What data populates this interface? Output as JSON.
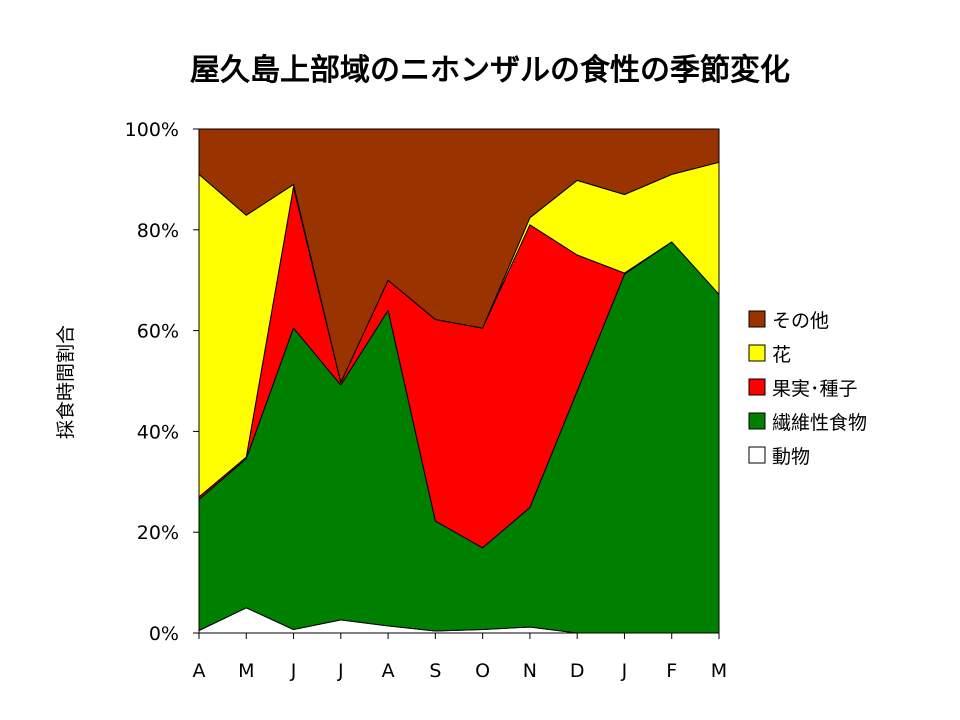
{
  "chart_data": {
    "type": "area",
    "stacked": true,
    "percent": true,
    "title": "屋久島上部域のニホンザルの食性の季節変化",
    "xlabel": "",
    "ylabel": "採食時間割合",
    "categories": [
      "A",
      "M",
      "J",
      "J",
      "A",
      "S",
      "O",
      "N",
      "D",
      "J",
      "F",
      "M"
    ],
    "ylim": [
      0,
      100
    ],
    "yticks": [
      "0%",
      "20%",
      "40%",
      "60%",
      "80%",
      "100%"
    ],
    "yticks_values": [
      0,
      20,
      40,
      60,
      80,
      100
    ],
    "grid": false,
    "legend_position": "right",
    "series": [
      {
        "name": "動物",
        "color": "#FFFFFF",
        "values": [
          0.5,
          5.0,
          0.7,
          2.6,
          1.4,
          0.4,
          0.7,
          1.2,
          0,
          0,
          0,
          0
        ]
      },
      {
        "name": "繊維性食物",
        "color": "#008000",
        "values": [
          26.0,
          29.6,
          59.8,
          46.6,
          62.6,
          21.8,
          16.2,
          23.7,
          48.0,
          71.2,
          77.6,
          67.2
        ]
      },
      {
        "name": "果実･種子",
        "color": "#FF0000",
        "values": [
          0.5,
          0.3,
          28.0,
          0.5,
          6.0,
          40.0,
          43.6,
          56.1,
          27.0,
          0.2,
          0,
          0
        ]
      },
      {
        "name": "花",
        "color": "#FFFF00",
        "values": [
          64.0,
          48.0,
          0.5,
          0,
          0,
          0,
          0,
          1.4,
          14.8,
          15.6,
          13.4,
          26.2
        ]
      },
      {
        "name": "その他",
        "color": "#993300",
        "values": [
          9.0,
          17.1,
          11.0,
          50.3,
          30.0,
          37.8,
          39.5,
          17.6,
          10.2,
          13.0,
          9.0,
          6.6
        ]
      }
    ],
    "legend_order": [
      "その他",
      "花",
      "果実･種子",
      "繊維性食物",
      "動物"
    ]
  }
}
